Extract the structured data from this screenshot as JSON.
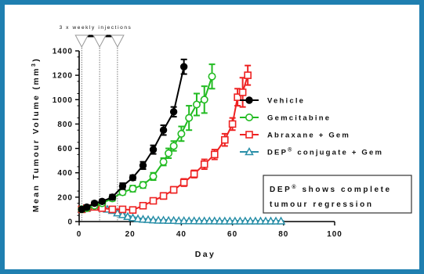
{
  "chart_data": {
    "type": "line",
    "xlabel": "Day",
    "ylabel": "Mean Tumour Volume (mm",
    "ylabel_superscript": "3",
    "ylabel_close": ")",
    "xlim": [
      0,
      100
    ],
    "ylim": [
      0,
      1400
    ],
    "x_ticks": [
      "0",
      "20",
      "40",
      "60",
      "80",
      "100"
    ],
    "y_ticks": [
      "0",
      "200",
      "400",
      "600",
      "800",
      "1000",
      "1200",
      "1400"
    ],
    "grid": false,
    "legend_position": "right",
    "injections": {
      "label": "3 x weekly injections",
      "days": [
        1,
        8,
        15
      ]
    },
    "annotation": {
      "line1_prefix": "DEP",
      "line1_superscript": "®",
      "line1_suffix": " shows complete",
      "line2": "tumour regression"
    },
    "series": [
      {
        "name": "Vehicle",
        "color": "#000000",
        "marker": "filled-circle",
        "x": [
          1,
          3,
          6,
          9,
          13,
          17,
          21,
          25,
          29,
          33,
          37,
          41
        ],
        "y": [
          100,
          118,
          150,
          165,
          200,
          290,
          360,
          460,
          590,
          750,
          900,
          1270
        ],
        "err": [
          15,
          15,
          15,
          15,
          20,
          25,
          20,
          30,
          35,
          40,
          40,
          60
        ]
      },
      {
        "name": "Gemcitabine",
        "color": "#22bb22",
        "marker": "open-circle",
        "x": [
          1,
          3,
          6,
          9,
          13,
          17,
          21,
          25,
          29,
          33,
          35,
          37,
          40,
          43,
          46,
          49,
          52
        ],
        "y": [
          100,
          110,
          130,
          150,
          190,
          240,
          270,
          300,
          370,
          490,
          560,
          620,
          720,
          850,
          960,
          1000,
          1190
        ],
        "err": [
          15,
          15,
          15,
          15,
          20,
          20,
          25,
          25,
          30,
          30,
          40,
          40,
          60,
          100,
          90,
          110,
          100
        ]
      },
      {
        "name": "Abraxane + Gem",
        "color": "#ee2222",
        "marker": "open-square",
        "x": [
          1,
          3,
          6,
          9,
          13,
          17,
          21,
          25,
          29,
          33,
          37,
          41,
          45,
          49,
          53,
          57,
          60,
          62,
          64,
          66
        ],
        "y": [
          100,
          110,
          120,
          110,
          100,
          100,
          95,
          130,
          170,
          210,
          260,
          320,
          390,
          470,
          550,
          670,
          800,
          1020,
          1060,
          1200
        ],
        "err": [
          15,
          15,
          15,
          15,
          15,
          15,
          15,
          15,
          20,
          25,
          25,
          30,
          30,
          40,
          40,
          50,
          50,
          70,
          120,
          80
        ]
      },
      {
        "name": "DEP® conjugate + Gem",
        "name_prefix": "DEP",
        "name_superscript": "®",
        "name_suffix": " conjugate + Gem",
        "color": "#2a8fa8",
        "marker": "open-triangle",
        "x": [
          1,
          3,
          5,
          7,
          9,
          11,
          13,
          15,
          17,
          19,
          21,
          23,
          25,
          27,
          29,
          31,
          33,
          35,
          37,
          39,
          41,
          43,
          45,
          47,
          49,
          51,
          53,
          55,
          57,
          59,
          61,
          63,
          65,
          67,
          69,
          71,
          73,
          75,
          77,
          79
        ],
        "y": [
          100,
          110,
          120,
          120,
          115,
          100,
          90,
          70,
          55,
          40,
          30,
          22,
          18,
          15,
          12,
          10,
          10,
          8,
          8,
          6,
          6,
          5,
          5,
          4,
          4,
          4,
          4,
          3,
          3,
          3,
          3,
          3,
          3,
          3,
          3,
          3,
          3,
          3,
          3,
          3
        ],
        "err": [
          10,
          10,
          12,
          12,
          12,
          10,
          10,
          8,
          8,
          6,
          5,
          4,
          4,
          3,
          3,
          3,
          3,
          2,
          2,
          2,
          2,
          2,
          2,
          2,
          2,
          2,
          2,
          2,
          2,
          2,
          2,
          2,
          2,
          2,
          2,
          2,
          2,
          2,
          2,
          2
        ]
      }
    ]
  }
}
